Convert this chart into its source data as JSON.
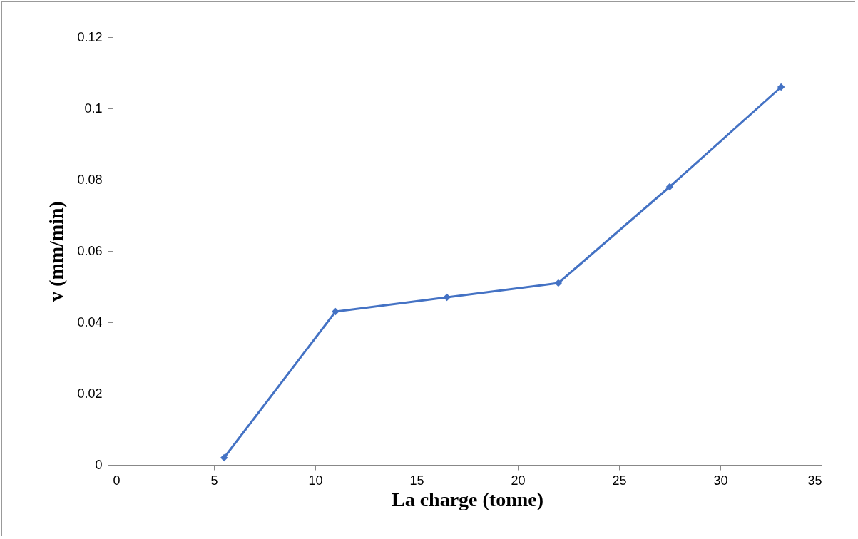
{
  "chart_data": {
    "type": "line",
    "xlabel": "La charge (tonne)",
    "ylabel": "v (mm/min)",
    "x": [
      5.5,
      11,
      16.5,
      22,
      27.5,
      33
    ],
    "series": [
      {
        "color": "#4472c4",
        "values": [
          0.002,
          0.043,
          0.047,
          0.051,
          0.078,
          0.106
        ]
      }
    ],
    "xlim": [
      0,
      35
    ],
    "xticks": [
      0,
      5,
      10,
      15,
      20,
      25,
      30,
      35
    ],
    "ylim": [
      0,
      0.12
    ],
    "yticks": [
      0,
      0.02,
      0.04,
      0.06,
      0.08,
      0.1,
      0.12
    ],
    "grid": false,
    "legend": false,
    "marker": "diamond",
    "line_style": "solid"
  }
}
